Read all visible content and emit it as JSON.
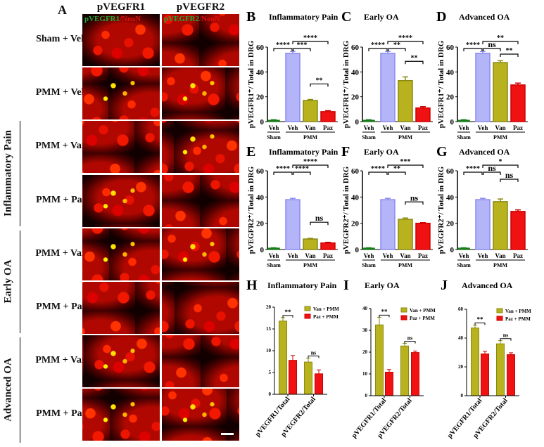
{
  "panelA": {
    "letter": "A",
    "columns": [
      "pVEGFR1",
      "pVEGFR2"
    ],
    "channel_labels": [
      {
        "green": "pVEGFR1",
        "red": "/NeuN"
      },
      {
        "green": "pVEGFR2",
        "red": "/NeuN"
      }
    ],
    "rows": [
      "Sham + Veh",
      "PMM + Veh",
      "PMM + Van",
      "PMM + Paz",
      "PMM + Van",
      "PMM + Paz",
      "PMM + Van",
      "PMM + Paz"
    ],
    "groups": [
      "Inflammatory Pain",
      "Early OA",
      "Advanced OA"
    ]
  },
  "colors": {
    "sham_veh": "#2e9a2e",
    "pmm_veh": "#b4b4f8",
    "van": "#b8b21e",
    "paz": "#f01212"
  },
  "chart_data": [
    {
      "panel": "B",
      "type": "bar",
      "title": "Inflammatory Pain",
      "ylabel": "pVEGFR1⁺/ Total in DRG",
      "ylim": [
        0,
        60
      ],
      "yticks": [
        0,
        20,
        40,
        60
      ],
      "categories": [
        "Veh",
        "Veh",
        "Van",
        "Paz"
      ],
      "groups": [
        "Sham",
        "PMM"
      ],
      "values": [
        1,
        55,
        17,
        8
      ],
      "errors": [
        0.5,
        1.5,
        0.8,
        0.8
      ],
      "comparisons": [
        [
          0,
          1,
          "****"
        ],
        [
          1,
          2,
          "***"
        ],
        [
          1,
          3,
          "****"
        ],
        [
          2,
          3,
          "**"
        ]
      ]
    },
    {
      "panel": "C",
      "type": "bar",
      "title": "Early OA",
      "ylabel": "pVEGFR1⁺/ Total in DRG",
      "ylim": [
        0,
        60
      ],
      "yticks": [
        0,
        20,
        40,
        60
      ],
      "categories": [
        "Veh",
        "Veh",
        "Van",
        "Paz"
      ],
      "groups": [
        "Sham",
        "PMM"
      ],
      "values": [
        1,
        55,
        33,
        11
      ],
      "errors": [
        0.5,
        1.5,
        3,
        1
      ],
      "comparisons": [
        [
          0,
          1,
          "****"
        ],
        [
          1,
          2,
          "**"
        ],
        [
          1,
          3,
          "****"
        ],
        [
          2,
          3,
          "**"
        ]
      ]
    },
    {
      "panel": "D",
      "type": "bar",
      "title": "Advanced OA",
      "ylabel": "pVEGFR1⁺/ Total in DRG",
      "ylim": [
        0,
        60
      ],
      "yticks": [
        0,
        20,
        40,
        60
      ],
      "categories": [
        "Veh",
        "Veh",
        "Van",
        "Paz"
      ],
      "groups": [
        "Sham",
        "PMM"
      ],
      "values": [
        1,
        55,
        47.5,
        29.5
      ],
      "errors": [
        0.5,
        1.5,
        1.5,
        1.5
      ],
      "comparisons": [
        [
          0,
          1,
          "****"
        ],
        [
          1,
          2,
          "ns"
        ],
        [
          1,
          3,
          "**"
        ],
        [
          2,
          3,
          "**"
        ]
      ]
    },
    {
      "panel": "E",
      "type": "bar",
      "title": "Inflammatory Pain",
      "ylabel": "pVEGFR2⁺/ Total in DRG",
      "ylim": [
        0,
        60
      ],
      "yticks": [
        0,
        20,
        40,
        60
      ],
      "categories": [
        "Veh",
        "Veh",
        "Van",
        "Paz"
      ],
      "groups": [
        "Sham",
        "PMM"
      ],
      "values": [
        1,
        38,
        8,
        5
      ],
      "errors": [
        0.3,
        1,
        0.5,
        0.5
      ],
      "comparisons": [
        [
          0,
          1,
          "****"
        ],
        [
          1,
          2,
          "****"
        ],
        [
          1,
          3,
          "****"
        ],
        [
          2,
          3,
          "ns"
        ]
      ]
    },
    {
      "panel": "F",
      "type": "bar",
      "title": "Early OA",
      "ylabel": "pVEGFR2⁺/ Total in DRG",
      "ylim": [
        0,
        60
      ],
      "yticks": [
        0,
        20,
        40,
        60
      ],
      "categories": [
        "Veh",
        "Veh",
        "Van",
        "Paz"
      ],
      "groups": [
        "Sham",
        "PMM"
      ],
      "values": [
        1,
        38,
        23,
        20
      ],
      "errors": [
        0.3,
        1,
        1,
        0.5
      ],
      "comparisons": [
        [
          0,
          1,
          "****"
        ],
        [
          1,
          2,
          "**"
        ],
        [
          1,
          3,
          "***"
        ],
        [
          2,
          3,
          "ns"
        ]
      ]
    },
    {
      "panel": "G",
      "type": "bar",
      "title": "Advanced OA",
      "ylabel": "pVEGFR2⁺/ Total in DRG",
      "ylim": [
        0,
        60
      ],
      "yticks": [
        0,
        20,
        40,
        60
      ],
      "categories": [
        "Veh",
        "Veh",
        "Van",
        "Paz"
      ],
      "groups": [
        "Sham",
        "PMM"
      ],
      "values": [
        1,
        38,
        36.5,
        29
      ],
      "errors": [
        0.3,
        1,
        2,
        1.2
      ],
      "comparisons": [
        [
          0,
          1,
          "****"
        ],
        [
          1,
          2,
          "ns"
        ],
        [
          1,
          3,
          "*"
        ],
        [
          2,
          3,
          "ns"
        ]
      ]
    },
    {
      "panel": "H",
      "type": "bar",
      "title": "Inflammatory Pain",
      "ylim": [
        0,
        20
      ],
      "yticks": [
        0,
        5,
        10,
        15,
        20
      ],
      "categories": [
        "pVEGFR1/Total",
        "pVEGFR2/Total"
      ],
      "series": [
        {
          "name": "Van + PMM",
          "values": [
            16.8,
            7.4
          ],
          "errors": [
            0.8,
            0.9
          ]
        },
        {
          "name": "Paz + PMM",
          "values": [
            7.8,
            4.7
          ],
          "errors": [
            1.1,
            0.9
          ]
        }
      ],
      "comparisons": [
        "**",
        "ns"
      ],
      "legend": "top-right"
    },
    {
      "panel": "I",
      "type": "bar",
      "title": "Early OA",
      "ylim": [
        0,
        40
      ],
      "yticks": [
        0,
        10,
        20,
        30,
        40
      ],
      "categories": [
        "pVEGFR1/Total",
        "pVEGFR2/Total"
      ],
      "series": [
        {
          "name": "Van + PMM",
          "values": [
            32.5,
            22.8
          ],
          "errors": [
            3.5,
            1.2
          ]
        },
        {
          "name": "Paz + PMM",
          "values": [
            10.8,
            19.8
          ],
          "errors": [
            1.2,
            0.7
          ]
        }
      ],
      "comparisons": [
        "**",
        "ns"
      ],
      "legend": "top-right"
    },
    {
      "panel": "J",
      "type": "bar",
      "title": "Advanced OA",
      "ylim": [
        0,
        60
      ],
      "yticks": [
        0,
        20,
        40,
        60
      ],
      "categories": [
        "pVEGFR1/Total",
        "pVEGFR2/Total"
      ],
      "series": [
        {
          "name": "Van + PMM",
          "values": [
            47,
            36
          ],
          "errors": [
            2,
            2.2
          ]
        },
        {
          "name": "Paz + PMM",
          "values": [
            29,
            28.5
          ],
          "errors": [
            1.8,
            1.3
          ]
        }
      ],
      "comparisons": [
        "**",
        "ns"
      ],
      "legend": "top-right"
    }
  ]
}
